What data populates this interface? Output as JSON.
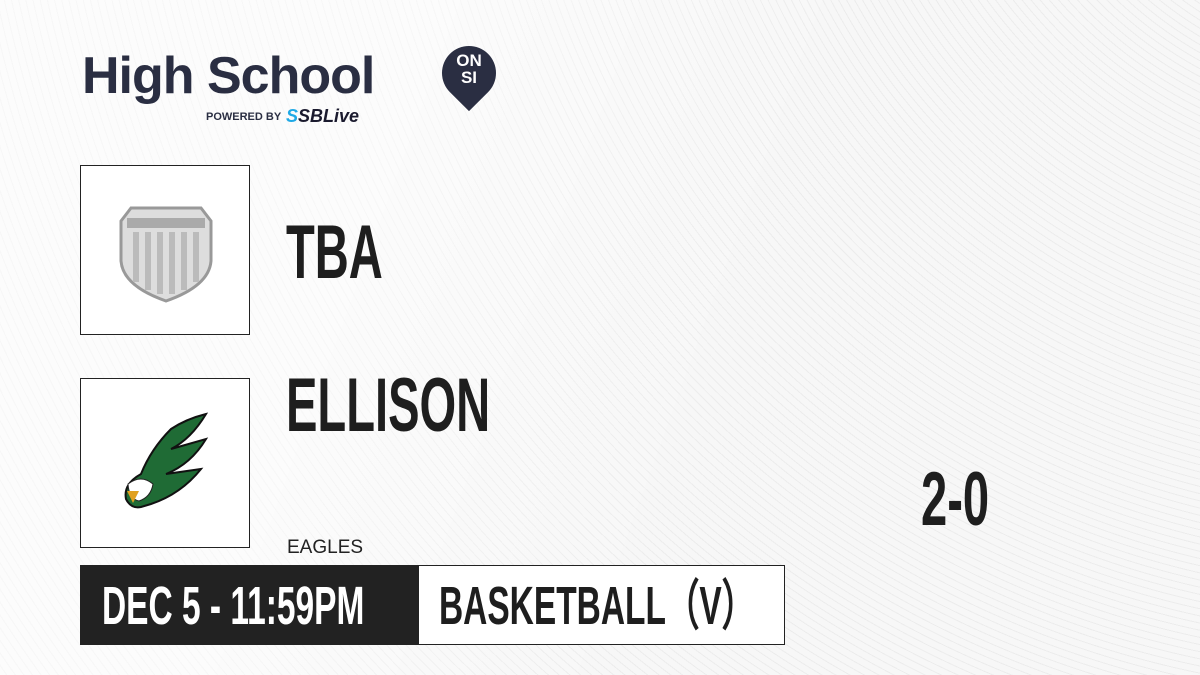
{
  "brand": {
    "title": "High School",
    "badge_top": "ON",
    "badge_bottom": "SI",
    "powered_by": "POWERED BY",
    "partner_prefix": "S",
    "partner": "SBLive"
  },
  "teams": [
    {
      "name": "TBA",
      "mascot": "",
      "logo": "generic-shield-icon"
    },
    {
      "name": "ELLISON",
      "mascot": "EAGLES",
      "logo": "eagle-logo-icon"
    }
  ],
  "score": "2-0",
  "game": {
    "datetime": "DEC 5 - 11:59PM",
    "sport": "BASKETBALL（V）"
  },
  "colors": {
    "brand": "#2a2e42",
    "partner_accent": "#1fa9e6",
    "team2_green": "#1f6b35"
  }
}
